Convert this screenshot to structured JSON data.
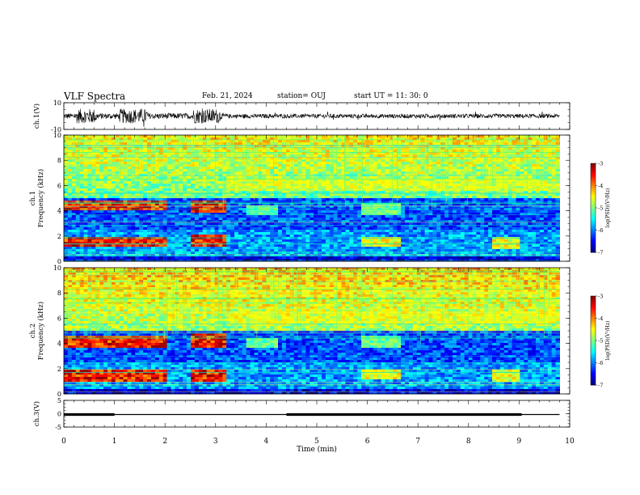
{
  "header": {
    "title": "VLF Spectra",
    "date": "Feb. 21, 2024",
    "station": "station= OUJ",
    "start": "start  UT =   11: 30: 0"
  },
  "chart_data": [
    {
      "type": "line",
      "name": "waveform-ch1",
      "ylabel": "ch.1(V)",
      "ylim": [
        -10,
        10
      ],
      "y_ticks": [
        "10",
        "-10"
      ],
      "xlim": [
        0,
        10
      ],
      "style": "noisy black waveform, amplitude bursts near 0.3-0.6, 1.1-1.6 and 2.6-3.1 min, quieter after 3.2 min, ends at 9.8 min"
    },
    {
      "type": "heatmap",
      "name": "spectrogram-ch1",
      "ylabel": "ch.1\nFrequency (kHz)",
      "ylim": [
        0,
        10
      ],
      "y_ticks": [
        "0",
        "2",
        "4",
        "6",
        "8",
        "10"
      ],
      "xlim": [
        0,
        10
      ],
      "data_end_min": 9.8,
      "colorbar": {
        "label": "log(PSD)(V²/Hz)",
        "range": [
          -7,
          -3
        ],
        "ticks": [
          "-3",
          "-4",
          "-5",
          "-6",
          "-7"
        ]
      },
      "strong_emission_bands": [
        {
          "t": [
            0,
            2.0
          ],
          "f_khz": [
            4.0,
            4.8
          ]
        },
        {
          "t": [
            0,
            2.0
          ],
          "f_khz": [
            1.2,
            2.0
          ]
        },
        {
          "t": [
            2.5,
            3.2
          ],
          "f_khz": [
            3.8,
            4.9
          ]
        },
        {
          "t": [
            2.5,
            3.2
          ],
          "f_khz": [
            1.2,
            2.1
          ]
        }
      ]
    },
    {
      "type": "heatmap",
      "name": "spectrogram-ch2",
      "ylabel": "ch.2\nFrequency (kHz)",
      "ylim": [
        0,
        10
      ],
      "y_ticks": [
        "0",
        "2",
        "4",
        "6",
        "8",
        "10"
      ],
      "xlim": [
        0,
        10
      ],
      "data_end_min": 9.8,
      "colorbar": {
        "label": "log(PSD)(V²/Hz)",
        "range": [
          -7,
          -3
        ],
        "ticks": [
          "-3",
          "-4",
          "-5",
          "-6",
          "-7"
        ]
      },
      "strong_emission_bands": [
        {
          "t": [
            0,
            2.0
          ],
          "f_khz": [
            3.6,
            4.6
          ]
        },
        {
          "t": [
            0,
            2.0
          ],
          "f_khz": [
            1.0,
            2.0
          ]
        },
        {
          "t": [
            2.5,
            3.2
          ],
          "f_khz": [
            3.6,
            4.9
          ]
        },
        {
          "t": [
            2.5,
            3.2
          ],
          "f_khz": [
            1.0,
            2.0
          ]
        }
      ]
    },
    {
      "type": "line",
      "name": "signal-ch3",
      "ylabel": "ch.3(V)",
      "ylim": [
        -5,
        5
      ],
      "y_ticks": [
        "5",
        "0",
        "-5"
      ],
      "xlim": [
        0,
        10
      ],
      "x_ticks": [
        "0",
        "1",
        "2",
        "3",
        "4",
        "5",
        "6",
        "7",
        "8",
        "9",
        "10"
      ],
      "xlabel": "Time (min)",
      "baseline_v": -0.3,
      "thick_segments_min": [
        [
          0,
          1.0
        ],
        [
          4.4,
          9.05
        ]
      ],
      "data_end_min": 9.8
    }
  ]
}
